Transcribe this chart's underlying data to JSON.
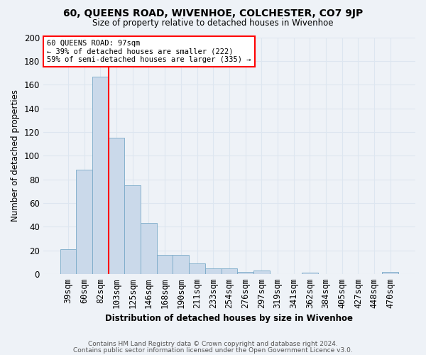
{
  "title": "60, QUEENS ROAD, WIVENHOE, COLCHESTER, CO7 9JP",
  "subtitle": "Size of property relative to detached houses in Wivenhoe",
  "xlabel": "Distribution of detached houses by size in Wivenhoe",
  "ylabel": "Number of detached properties",
  "bar_color": "#cad9ea",
  "bar_edge_color": "#7aaac8",
  "categories": [
    "39sqm",
    "60sqm",
    "82sqm",
    "103sqm",
    "125sqm",
    "146sqm",
    "168sqm",
    "190sqm",
    "211sqm",
    "233sqm",
    "254sqm",
    "276sqm",
    "297sqm",
    "319sqm",
    "341sqm",
    "362sqm",
    "384sqm",
    "405sqm",
    "427sqm",
    "448sqm",
    "470sqm"
  ],
  "values": [
    21,
    88,
    167,
    115,
    75,
    43,
    16,
    16,
    9,
    5,
    5,
    2,
    3,
    0,
    0,
    1,
    0,
    0,
    0,
    0,
    2
  ],
  "red_line_index": 3,
  "property_label": "60 QUEENS ROAD: 97sqm",
  "annotation_line1": "← 39% of detached houses are smaller (222)",
  "annotation_line2": "59% of semi-detached houses are larger (335) →",
  "ylim": [
    0,
    200
  ],
  "yticks": [
    0,
    20,
    40,
    60,
    80,
    100,
    120,
    140,
    160,
    180,
    200
  ],
  "background_color": "#eef2f7",
  "grid_color": "#dde6f0",
  "footer_line1": "Contains HM Land Registry data © Crown copyright and database right 2024.",
  "footer_line2": "Contains public sector information licensed under the Open Government Licence v3.0."
}
